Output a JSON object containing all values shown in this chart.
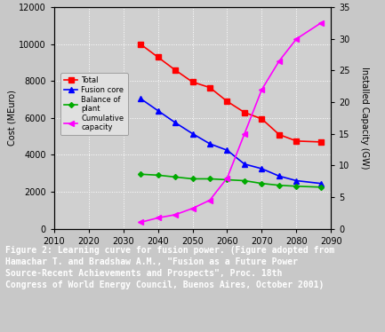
{
  "years": [
    2035,
    2040,
    2045,
    2050,
    2055,
    2060,
    2065,
    2070,
    2075,
    2080,
    2087
  ],
  "total": [
    10000,
    9300,
    8600,
    7950,
    7650,
    6900,
    6300,
    5950,
    5100,
    4750,
    4700
  ],
  "fusion_core": [
    7050,
    6400,
    5750,
    5150,
    4600,
    4250,
    3500,
    3250,
    2850,
    2600,
    2450
  ],
  "balance_of_plant": [
    2950,
    2900,
    2800,
    2700,
    2700,
    2650,
    2600,
    2450,
    2350,
    2300,
    2250
  ],
  "cumulative_capacity_gw": [
    1.0,
    1.7,
    2.2,
    3.2,
    4.5,
    8.0,
    15.0,
    22.0,
    26.5,
    30.0,
    32.5
  ],
  "total_color": "#ff0000",
  "fusion_core_color": "#0000ff",
  "balance_color": "#00aa00",
  "cumulative_color": "#ff00ff",
  "bg_color": "#c8c8c8",
  "plot_bg_color": "#d0d0d0",
  "grid_color": "#ffffff",
  "ylabel_left": "Cost (MEuro)",
  "ylabel_right": "Installed Capacity (GW)",
  "xlim": [
    2010,
    2090
  ],
  "ylim_left": [
    0,
    12000
  ],
  "ylim_right": [
    0,
    35
  ],
  "xticks": [
    2010,
    2020,
    2030,
    2040,
    2050,
    2060,
    2070,
    2080,
    2090
  ],
  "yticks_left": [
    0,
    2000,
    4000,
    6000,
    8000,
    10000,
    12000
  ],
  "yticks_right": [
    0,
    5,
    10,
    15,
    20,
    25,
    30,
    35
  ],
  "caption_text": "Figure 2: Learning curve for fusion power. (Figure adopted from\nHamachar T. and Bradshaw A.M., \"Fusion as a Future Power\nSource-Recent Achievements and Prospects\", Proc. 18th\nCongress of World Energy Council, Buenos Aires, October 2001)",
  "caption_bg": "#b03030",
  "caption_text_color": "#ffffff",
  "legend_labels": [
    "Total",
    "Fusion core",
    "Balance of\nplant",
    "Cumulative\ncapacity"
  ],
  "marker_size": 4
}
